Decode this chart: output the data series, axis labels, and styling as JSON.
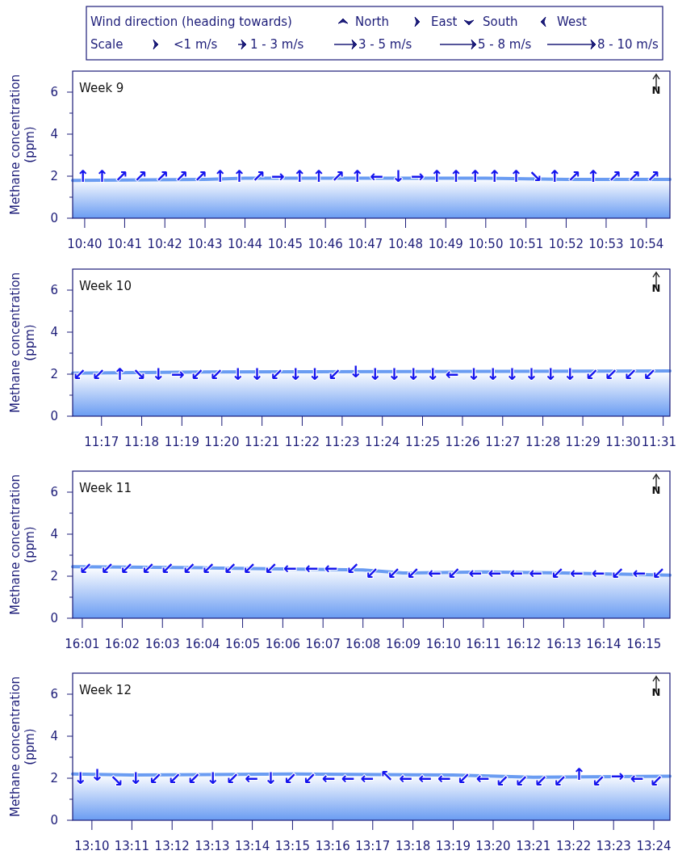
{
  "chart_data": [
    {
      "type": "area",
      "ylabel": "Methane concentration (ppm)",
      "color": "#6a9cf2",
      "ylim": [
        0,
        7
      ],
      "yticks": [
        0,
        {
          "value": 1,
          "label": null
        },
        2,
        {
          "value": 3,
          "label": null
        },
        4,
        {
          "value": 5,
          "label": null
        },
        6
      ],
      "xlim": [
        10.6617,
        10.9098
      ],
      "xticks": [
        {
          "value": 10.6667,
          "label": "10:40"
        },
        {
          "value": 10.6833,
          "label": "10:41"
        },
        {
          "value": 10.7,
          "label": "10:42"
        },
        {
          "value": 10.7167,
          "label": "10:43"
        },
        {
          "value": 10.7333,
          "label": "10:44"
        },
        {
          "value": 10.75,
          "label": "10:45"
        },
        {
          "value": 10.7667,
          "label": "10:46"
        },
        {
          "value": 10.7833,
          "label": "10:47"
        },
        {
          "value": 10.8,
          "label": "10:48"
        },
        {
          "value": 10.8167,
          "label": "10:49"
        },
        {
          "value": 10.8333,
          "label": "10:50"
        },
        {
          "value": 10.85,
          "label": "10:51"
        },
        {
          "value": 10.8667,
          "label": "10:52"
        },
        {
          "value": 10.8833,
          "label": "10:53"
        },
        {
          "value": 10.9,
          "label": "10:54"
        }
      ],
      "x": [
        10.6617,
        10.7167,
        10.7333,
        10.8333,
        10.8667,
        10.9098
      ],
      "values": [
        1.8,
        1.85,
        1.9,
        1.9,
        1.85,
        1.85
      ],
      "annotations": [
        "Week 9",
        "N",
        "Wind direction (heading towards)",
        "North",
        "East",
        "South",
        "West",
        "Scale",
        "<1 m/s",
        "1 - 3 m/s",
        "3 - 5 m/s",
        "5 - 8 m/s",
        "8 - 10 m/s",
        {
          "text": "↑",
          "x": 10.666,
          "y": 2
        },
        {
          "text": "↑",
          "x": 10.674,
          "y": 2
        },
        {
          "text": "↗",
          "x": 10.682,
          "y": 2
        },
        {
          "text": "↗",
          "x": 10.69,
          "y": 2
        },
        {
          "text": "↗",
          "x": 10.699,
          "y": 2
        },
        {
          "text": "↗",
          "x": 10.707,
          "y": 2
        },
        {
          "text": "↗",
          "x": 10.715,
          "y": 2
        },
        {
          "text": "↑",
          "x": 10.723,
          "y": 2
        },
        {
          "text": "↑",
          "x": 10.731,
          "y": 2
        },
        {
          "text": "↗",
          "x": 10.739,
          "y": 2
        },
        {
          "text": "→",
          "x": 10.747,
          "y": 2
        },
        {
          "text": "↑",
          "x": 10.756,
          "y": 2
        },
        {
          "text": "↑",
          "x": 10.764,
          "y": 2
        },
        {
          "text": "↗",
          "x": 10.772,
          "y": 2
        },
        {
          "text": "↑",
          "x": 10.78,
          "y": 2
        },
        {
          "text": "←",
          "x": 10.788,
          "y": 2
        },
        {
          "text": "↓",
          "x": 10.797,
          "y": 2
        },
        {
          "text": "→",
          "x": 10.805,
          "y": 2
        },
        {
          "text": "↑",
          "x": 10.813,
          "y": 2
        },
        {
          "text": "↑",
          "x": 10.821,
          "y": 2
        },
        {
          "text": "↑",
          "x": 10.829,
          "y": 2
        },
        {
          "text": "↑",
          "x": 10.837,
          "y": 2
        },
        {
          "text": "↑",
          "x": 10.846,
          "y": 2
        },
        {
          "text": "↘",
          "x": 10.854,
          "y": 2
        },
        {
          "text": "↑",
          "x": 10.862,
          "y": 2
        },
        {
          "text": "↗",
          "x": 10.87,
          "y": 2
        },
        {
          "text": "↑",
          "x": 10.878,
          "y": 2
        },
        {
          "text": "↗",
          "x": 10.887,
          "y": 2
        },
        {
          "text": "↗",
          "x": 10.895,
          "y": 2
        },
        {
          "text": "↗",
          "x": 10.903,
          "y": 2
        }
      ]
    },
    {
      "type": "area",
      "ylabel": "Methane concentration (ppm)",
      "color": "#6a9cf2",
      "ylim": [
        0,
        7
      ],
      "yticks": [
        0,
        {
          "value": 1,
          "label": null
        },
        2,
        {
          "value": 3,
          "label": null
        },
        4,
        {
          "value": 5,
          "label": null
        },
        6
      ],
      "xlim": [
        11.2713,
        11.5195
      ],
      "xticks": [
        {
          "value": 11.2833,
          "label": "11:17"
        },
        {
          "value": 11.3,
          "label": "11:18"
        },
        {
          "value": 11.3167,
          "label": "11:19"
        },
        {
          "value": 11.3333,
          "label": "11:20"
        },
        {
          "value": 11.35,
          "label": "11:21"
        },
        {
          "value": 11.3667,
          "label": "11:22"
        },
        {
          "value": 11.3833,
          "label": "11:23"
        },
        {
          "value": 11.4,
          "label": "11:24"
        },
        {
          "value": 11.4167,
          "label": "11:25"
        },
        {
          "value": 11.4333,
          "label": "11:26"
        },
        {
          "value": 11.45,
          "label": "11:27"
        },
        {
          "value": 11.4667,
          "label": "11:28"
        },
        {
          "value": 11.4833,
          "label": "11:29"
        },
        {
          "value": 11.5,
          "label": "11:30"
        },
        {
          "value": 11.5167,
          "label": "11:31"
        }
      ],
      "x": [
        11.2713,
        11.3167,
        11.5195
      ],
      "values": [
        2.05,
        2.1,
        2.15
      ],
      "annotations": [
        "Week 10",
        "N",
        {
          "text": "↙",
          "x": 11.274,
          "y": 2
        },
        {
          "text": "↙",
          "x": 11.282,
          "y": 2
        },
        {
          "text": "↑",
          "x": 11.291,
          "y": 2
        },
        {
          "text": "↘",
          "x": 11.299,
          "y": 2
        },
        {
          "text": "↓",
          "x": 11.307,
          "y": 2
        },
        {
          "text": "→",
          "x": 11.315,
          "y": 2
        },
        {
          "text": "↙",
          "x": 11.323,
          "y": 2
        },
        {
          "text": "↙",
          "x": 11.331,
          "y": 2
        },
        {
          "text": "↓",
          "x": 11.34,
          "y": 2
        },
        {
          "text": "↓",
          "x": 11.348,
          "y": 2
        },
        {
          "text": "↙",
          "x": 11.356,
          "y": 2
        },
        {
          "text": "↓",
          "x": 11.364,
          "y": 2
        },
        {
          "text": "↓",
          "x": 11.372,
          "y": 2
        },
        {
          "text": "↙",
          "x": 11.38,
          "y": 2
        },
        {
          "text": "↓",
          "x": 11.389,
          "y": 2.1
        },
        {
          "text": "↓",
          "x": 11.397,
          "y": 2
        },
        {
          "text": "↓",
          "x": 11.405,
          "y": 2
        },
        {
          "text": "↓",
          "x": 11.413,
          "y": 2
        },
        {
          "text": "↓",
          "x": 11.421,
          "y": 2
        },
        {
          "text": "←",
          "x": 11.429,
          "y": 2
        },
        {
          "text": "↓",
          "x": 11.438,
          "y": 2
        },
        {
          "text": "↓",
          "x": 11.446,
          "y": 2
        },
        {
          "text": "↓",
          "x": 11.454,
          "y": 2
        },
        {
          "text": "↓",
          "x": 11.462,
          "y": 2
        },
        {
          "text": "↓",
          "x": 11.47,
          "y": 2
        },
        {
          "text": "↓",
          "x": 11.478,
          "y": 2
        },
        {
          "text": "↙",
          "x": 11.487,
          "y": 2
        },
        {
          "text": "↙",
          "x": 11.495,
          "y": 2
        },
        {
          "text": "↙",
          "x": 11.503,
          "y": 2
        },
        {
          "text": "↙",
          "x": 11.511,
          "y": 2
        }
      ]
    },
    {
      "type": "area",
      "ylabel": "Methane concentration (ppm)",
      "color": "#6a9cf2",
      "ylim": [
        0,
        7
      ],
      "yticks": [
        0,
        {
          "value": 1,
          "label": null
        },
        2,
        {
          "value": 3,
          "label": null
        },
        4,
        {
          "value": 5,
          "label": null
        },
        6
      ],
      "xlim": [
        16.0127,
        16.2608
      ],
      "xticks": [
        {
          "value": 16.0167,
          "label": "16:01"
        },
        {
          "value": 16.0333,
          "label": "16:02"
        },
        {
          "value": 16.05,
          "label": "16:03"
        },
        {
          "value": 16.0667,
          "label": "16:04"
        },
        {
          "value": 16.0833,
          "label": "16:05"
        },
        {
          "value": 16.1,
          "label": "16:06"
        },
        {
          "value": 16.1167,
          "label": "16:07"
        },
        {
          "value": 16.1333,
          "label": "16:08"
        },
        {
          "value": 16.15,
          "label": "16:09"
        },
        {
          "value": 16.1667,
          "label": "16:10"
        },
        {
          "value": 16.1833,
          "label": "16:11"
        },
        {
          "value": 16.2,
          "label": "16:12"
        },
        {
          "value": 16.2167,
          "label": "16:13"
        },
        {
          "value": 16.2333,
          "label": "16:14"
        },
        {
          "value": 16.25,
          "label": "16:15"
        }
      ],
      "x": [
        16.0127,
        16.0667,
        16.1,
        16.1333,
        16.15,
        16.1833,
        16.2167,
        16.2608
      ],
      "values": [
        2.45,
        2.4,
        2.35,
        2.3,
        2.15,
        2.2,
        2.15,
        2.05
      ],
      "annotations": [
        "Week 11",
        "N",
        {
          "text": "↙",
          "x": 16.018,
          "y": 2.4
        },
        {
          "text": "↙",
          "x": 16.027,
          "y": 2.4
        },
        {
          "text": "↙",
          "x": 16.035,
          "y": 2.4
        },
        {
          "text": "↙",
          "x": 16.044,
          "y": 2.4
        },
        {
          "text": "↙",
          "x": 16.052,
          "y": 2.4
        },
        {
          "text": "↙",
          "x": 16.061,
          "y": 2.4
        },
        {
          "text": "↙",
          "x": 16.069,
          "y": 2.4
        },
        {
          "text": "↙",
          "x": 16.078,
          "y": 2.4
        },
        {
          "text": "↙",
          "x": 16.086,
          "y": 2.4
        },
        {
          "text": "↙",
          "x": 16.095,
          "y": 2.4
        },
        {
          "text": "←",
          "x": 16.103,
          "y": 2.4
        },
        {
          "text": "←",
          "x": 16.112,
          "y": 2.4
        },
        {
          "text": "←",
          "x": 16.12,
          "y": 2.4
        },
        {
          "text": "↙",
          "x": 16.129,
          "y": 2.4
        },
        {
          "text": "↙",
          "x": 16.137,
          "y": 2.15
        },
        {
          "text": "↙",
          "x": 16.146,
          "y": 2.15
        },
        {
          "text": "↙",
          "x": 16.154,
          "y": 2.15
        },
        {
          "text": "←",
          "x": 16.163,
          "y": 2.15
        },
        {
          "text": "↙",
          "x": 16.171,
          "y": 2.15
        },
        {
          "text": "←",
          "x": 16.18,
          "y": 2.15
        },
        {
          "text": "←",
          "x": 16.188,
          "y": 2.15
        },
        {
          "text": "←",
          "x": 16.197,
          "y": 2.15
        },
        {
          "text": "←",
          "x": 16.205,
          "y": 2.15
        },
        {
          "text": "↙",
          "x": 16.214,
          "y": 2.15
        },
        {
          "text": "←",
          "x": 16.222,
          "y": 2.15
        },
        {
          "text": "←",
          "x": 16.231,
          "y": 2.15
        },
        {
          "text": "↙",
          "x": 16.239,
          "y": 2.15
        },
        {
          "text": "←",
          "x": 16.248,
          "y": 2.15
        },
        {
          "text": "↙",
          "x": 16.256,
          "y": 2.15
        }
      ]
    },
    {
      "type": "area",
      "ylabel": "Methane concentration (ppm)",
      "color": "#6a9cf2",
      "ylim": [
        0,
        7
      ],
      "yticks": [
        0,
        {
          "value": 1,
          "label": null
        },
        2,
        {
          "value": 3,
          "label": null
        },
        4,
        {
          "value": 5,
          "label": null
        },
        6
      ],
      "xlim": [
        13.1587,
        13.4067
      ],
      "xticks": [
        {
          "value": 13.1667,
          "label": "13:10"
        },
        {
          "value": 13.1833,
          "label": "13:11"
        },
        {
          "value": 13.2,
          "label": "13:12"
        },
        {
          "value": 13.2167,
          "label": "13:13"
        },
        {
          "value": 13.2333,
          "label": "13:14"
        },
        {
          "value": 13.25,
          "label": "13:15"
        },
        {
          "value": 13.2667,
          "label": "13:16"
        },
        {
          "value": 13.2833,
          "label": "13:17"
        },
        {
          "value": 13.3,
          "label": "13:18"
        },
        {
          "value": 13.3167,
          "label": "13:19"
        },
        {
          "value": 13.3333,
          "label": "13:20"
        },
        {
          "value": 13.35,
          "label": "13:21"
        },
        {
          "value": 13.3667,
          "label": "13:22"
        },
        {
          "value": 13.3833,
          "label": "13:23"
        },
        {
          "value": 13.4,
          "label": "13:24"
        }
      ],
      "x": [
        13.1587,
        13.1833,
        13.25,
        13.3167,
        13.35,
        13.4067
      ],
      "values": [
        2.2,
        2.15,
        2.2,
        2.15,
        2.05,
        2.1
      ],
      "annotations": [
        "Week 12",
        "N",
        {
          "text": "↓",
          "x": 13.162,
          "y": 2
        },
        {
          "text": "↓",
          "x": 13.169,
          "y": 2.15
        },
        {
          "text": "↘",
          "x": 13.177,
          "y": 1.9
        },
        {
          "text": "↓",
          "x": 13.185,
          "y": 2
        },
        {
          "text": "↙",
          "x": 13.193,
          "y": 2
        },
        {
          "text": "↙",
          "x": 13.201,
          "y": 2
        },
        {
          "text": "↙",
          "x": 13.209,
          "y": 2
        },
        {
          "text": "↓",
          "x": 13.217,
          "y": 2
        },
        {
          "text": "↙",
          "x": 13.225,
          "y": 2
        },
        {
          "text": "←",
          "x": 13.233,
          "y": 2
        },
        {
          "text": "↓",
          "x": 13.241,
          "y": 2
        },
        {
          "text": "↙",
          "x": 13.249,
          "y": 2
        },
        {
          "text": "↙",
          "x": 13.257,
          "y": 2
        },
        {
          "text": "←",
          "x": 13.265,
          "y": 2
        },
        {
          "text": "←",
          "x": 13.273,
          "y": 2
        },
        {
          "text": "←",
          "x": 13.281,
          "y": 2
        },
        {
          "text": "↖",
          "x": 13.289,
          "y": 2.1
        },
        {
          "text": "←",
          "x": 13.297,
          "y": 2
        },
        {
          "text": "←",
          "x": 13.305,
          "y": 2
        },
        {
          "text": "←",
          "x": 13.313,
          "y": 2
        },
        {
          "text": "↙",
          "x": 13.321,
          "y": 2
        },
        {
          "text": "←",
          "x": 13.329,
          "y": 2
        },
        {
          "text": "↙",
          "x": 13.337,
          "y": 1.9
        },
        {
          "text": "↙",
          "x": 13.345,
          "y": 1.9
        },
        {
          "text": "↙",
          "x": 13.353,
          "y": 1.9
        },
        {
          "text": "↙",
          "x": 13.361,
          "y": 1.9
        },
        {
          "text": "↑",
          "x": 13.369,
          "y": 2.2
        },
        {
          "text": "↙",
          "x": 13.377,
          "y": 1.9
        },
        {
          "text": "→",
          "x": 13.385,
          "y": 2.1
        },
        {
          "text": "←",
          "x": 13.393,
          "y": 2
        },
        {
          "text": "↙",
          "x": 13.401,
          "y": 1.9
        }
      ]
    }
  ]
}
